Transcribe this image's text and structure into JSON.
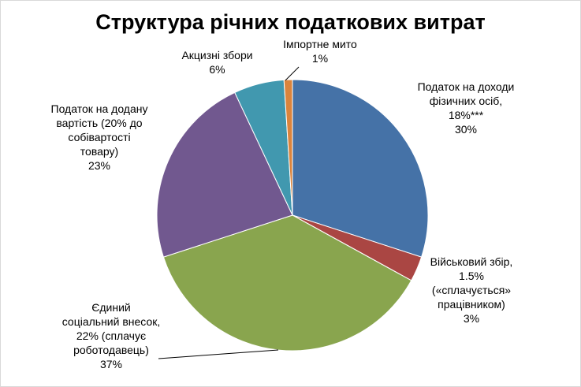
{
  "chart_data": {
    "type": "pie",
    "title": "Структура річних податкових витрат",
    "slices": [
      {
        "label_lines": [
          "Податок на доходи",
          "фізичних осіб,",
          "18%***"
        ],
        "percent_label": "30%",
        "value": 30,
        "color": "#4572A7"
      },
      {
        "label_lines": [
          "Військовий збір,",
          "1.5%",
          "(«сплачується»",
          "працівником)"
        ],
        "percent_label": "3%",
        "value": 3,
        "color": "#AA4643"
      },
      {
        "label_lines": [
          "Єдиний",
          "соціальний внесок,",
          "22% (сплачує",
          "роботодавець)"
        ],
        "percent_label": "37%",
        "value": 37,
        "color": "#89A54E"
      },
      {
        "label_lines": [
          "Податок на додану",
          "вартість (20% до",
          "собівартості",
          "товару)"
        ],
        "percent_label": "23%",
        "value": 23,
        "color": "#71588F"
      },
      {
        "label_lines": [
          "Акцизні збори"
        ],
        "percent_label": "6%",
        "value": 6,
        "color": "#4198AF"
      },
      {
        "label_lines": [
          "Імпортне мито"
        ],
        "percent_label": "1%",
        "value": 1,
        "color": "#DB843D"
      }
    ]
  }
}
